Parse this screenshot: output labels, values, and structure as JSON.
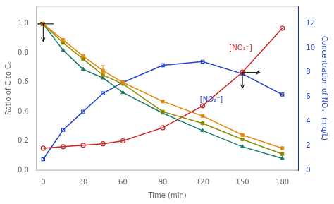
{
  "chart_data": {
    "type": "line",
    "xlabel": "Time (min)",
    "ylabel": "Ratio of C to Cₒ",
    "y2label": "Concentration of NOₓ⁻ (mg/L)",
    "x": [
      0,
      15,
      30,
      45,
      60,
      90,
      120,
      150,
      180
    ],
    "series": [
      {
        "color": "#E8860A",
        "marker": "square",
        "values": [
          1.0,
          0.89,
          0.78,
          0.68,
          0.6,
          0.47,
          0.37,
          0.24,
          0.15
        ]
      },
      {
        "color": "#8B8B00",
        "marker": "square",
        "values": [
          1.0,
          0.87,
          0.76,
          0.65,
          0.59,
          0.4,
          0.32,
          0.21,
          0.11
        ]
      },
      {
        "color": "#1A7A6A",
        "marker": "triangle",
        "values": [
          1.0,
          0.82,
          0.69,
          0.63,
          0.53,
          0.39,
          0.27,
          0.16,
          0.08
        ]
      },
      {
        "color": "#CC2222",
        "marker": "circle_open",
        "values": [
          0.15,
          0.16,
          0.17,
          0.18,
          0.2,
          0.29,
          0.44,
          0.67,
          0.97
        ]
      },
      {
        "color": "#2244CC",
        "marker": "square_open",
        "axis": "y2",
        "values": [
          0.9,
          3.3,
          4.8,
          6.3,
          7.2,
          8.6,
          8.9,
          7.9,
          6.2
        ]
      }
    ],
    "error_bars": [
      {
        "x": 45,
        "y": 0.68,
        "yerr": 0.035,
        "color": "#E8860A"
      }
    ],
    "annotations": [
      {
        "text": "[NO₃⁻]",
        "x": 140,
        "y": 0.82,
        "color": "#CC2222"
      },
      {
        "text": "[NO₂⁻]",
        "x": 118,
        "y": 0.47,
        "color": "#2244CC"
      }
    ],
    "arrows": [
      {
        "x": 8,
        "y": 1.0,
        "to_x": -4,
        "to_y": 1.0
      },
      {
        "x": 0,
        "y": 1.0,
        "to_x": 0,
        "to_y": 0.88
      },
      {
        "x": 150,
        "y": 0.668,
        "to_x": 163,
        "to_y": 0.668
      },
      {
        "x": 150,
        "y": 0.668,
        "to_x": 150,
        "to_y": 0.56
      }
    ],
    "xlim": [
      -5,
      192
    ],
    "xticks": [
      0,
      30,
      60,
      90,
      120,
      150,
      180
    ],
    "ylim": [
      0,
      1.12
    ],
    "yticks": [
      {
        "value": 0,
        "label": "0.0"
      },
      0.2,
      0.4,
      0.6,
      0.8,
      {
        "value": 1.0,
        "label": "1.0"
      }
    ],
    "y2lim": [
      0,
      13.44
    ],
    "y2ticks": [
      0,
      2,
      4,
      6,
      8,
      10,
      12
    ],
    "grid": false
  }
}
